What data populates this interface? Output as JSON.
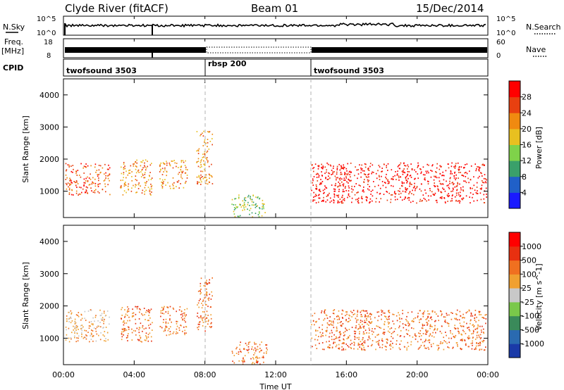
{
  "header": {
    "station": "Clyde River (fitACF)",
    "beam": "Beam 01",
    "date": "15/Dec/2014"
  },
  "strip_panels": {
    "nsky": {
      "left_label": "N.Sky",
      "right_label": "N.Search",
      "left_top": "10^5",
      "left_bottom": "10^0",
      "right_top": "10^5",
      "right_bottom": "10^0"
    },
    "freq": {
      "left_label_1": "Freq.",
      "left_label_2": "[MHz]",
      "left_top": "18",
      "left_bottom": "8",
      "right_label": "Nave",
      "right_top": "60",
      "right_bottom": "0"
    },
    "cpid": {
      "label": "CPID",
      "segments": [
        {
          "name": "twofsound 3503",
          "start": 0,
          "end": 8
        },
        {
          "name": "rbsp 200",
          "start": 8,
          "end": 14
        },
        {
          "name": "twofsound 3503",
          "start": 14,
          "end": 24
        }
      ]
    }
  },
  "chart_data": [
    {
      "type": "heatmap",
      "panel": "power",
      "ylabel": "Slant Range [km]",
      "yticks": [
        "1000",
        "2000",
        "3000",
        "4000"
      ],
      "ylim": [
        180,
        4500
      ],
      "xlim": [
        0,
        24
      ],
      "colorbar_label": "Power [dB]",
      "colorbar_ticks": [
        "4",
        "8",
        "12",
        "16",
        "20",
        "24",
        "28"
      ],
      "colorbar_colors": [
        "#1a1aff",
        "#2060c8",
        "#3aa06a",
        "#7fd24a",
        "#e8c020",
        "#f08a10",
        "#e84010",
        "#ff0000"
      ],
      "scatter_regions": [
        {
          "t0": 0.1,
          "t1": 2.6,
          "r0": 900,
          "r1": 1900,
          "level": 6
        },
        {
          "t0": 3.2,
          "t1": 5.0,
          "r0": 900,
          "r1": 2000,
          "level": 5
        },
        {
          "t0": 5.4,
          "t1": 7.0,
          "r0": 1100,
          "r1": 2000,
          "level": 5
        },
        {
          "t0": 7.5,
          "t1": 8.4,
          "r0": 1200,
          "r1": 2900,
          "level": 5
        },
        {
          "t0": 14.0,
          "t1": 23.9,
          "r0": 650,
          "r1": 1900,
          "level": 7
        },
        {
          "t0": 9.5,
          "t1": 11.5,
          "r0": 200,
          "r1": 900,
          "level": 3
        }
      ]
    },
    {
      "type": "heatmap",
      "panel": "velocity",
      "ylabel": "Slant Range [km]",
      "yticks": [
        "1000",
        "2000",
        "3000",
        "4000"
      ],
      "ylim": [
        180,
        4500
      ],
      "xlim": [
        0,
        24
      ],
      "xticks": [
        "00:00",
        "04:00",
        "08:00",
        "12:00",
        "16:00",
        "20:00",
        "00:00"
      ],
      "xlabel": "Time UT",
      "colorbar_label": "Velocity [m s^-1]",
      "colorbar_ticks": [
        "1000",
        "500",
        "100",
        "25",
        "-25",
        "-100",
        "-500",
        "-1000"
      ],
      "colorbar_colors": [
        "#1a3aa8",
        "#2a6ab0",
        "#3a8a5a",
        "#7ac84a",
        "#c8c8c8",
        "#f0a030",
        "#f07020",
        "#e83010",
        "#ff0000"
      ],
      "scatter_regions": [
        {
          "t0": 0.1,
          "t1": 2.6,
          "r0": 900,
          "r1": 1900,
          "level": 5
        },
        {
          "t0": 3.2,
          "t1": 5.0,
          "r0": 900,
          "r1": 2000,
          "level": 6
        },
        {
          "t0": 5.4,
          "t1": 7.0,
          "r0": 1100,
          "r1": 2000,
          "level": 6
        },
        {
          "t0": 7.5,
          "t1": 8.4,
          "r0": 1200,
          "r1": 2900,
          "level": 6
        },
        {
          "t0": 14.0,
          "t1": 23.9,
          "r0": 650,
          "r1": 1900,
          "level": 6
        },
        {
          "t0": 9.5,
          "t1": 11.5,
          "r0": 200,
          "r1": 900,
          "level": 6
        }
      ]
    }
  ]
}
